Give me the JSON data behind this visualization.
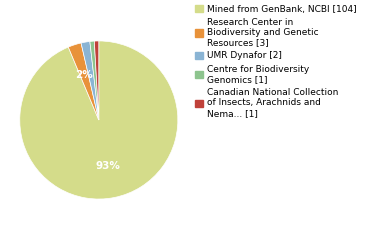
{
  "slices": [
    104,
    3,
    2,
    1,
    1
  ],
  "labels": [
    "Mined from GenBank, NCBI [104]",
    "Research Center in\nBiodiversity and Genetic\nResources [3]",
    "UMR Dynafor [2]",
    "Centre for Biodiversity\nGenomics [1]",
    "Canadian National Collection\nof Insects, Arachnids and\nNema... [1]"
  ],
  "colors": [
    "#d4dc8a",
    "#e8923a",
    "#8ab4d4",
    "#8dc48e",
    "#c0413a"
  ],
  "background_color": "#ffffff",
  "legend_fontsize": 6.5,
  "pct_fontsize": 7.5
}
